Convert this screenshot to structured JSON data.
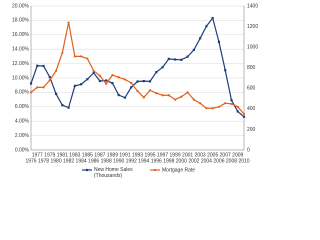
{
  "chart_data": {
    "type": "line",
    "categories": [
      "1976",
      "1977",
      "1978",
      "1979",
      "1980",
      "1981",
      "1982",
      "1983",
      "1984",
      "1985",
      "1986",
      "1987",
      "1988",
      "1989",
      "1990",
      "1991",
      "1992",
      "1993",
      "1994",
      "1995",
      "1996",
      "1997",
      "1998",
      "1999",
      "2000",
      "2001",
      "2002",
      "2003",
      "2004",
      "2005",
      "2006",
      "2007",
      "2008",
      "2009",
      "2010"
    ],
    "series": [
      {
        "name": "New Home Sales (Thousands)",
        "color": "#1f3f7a",
        "axis": "y2",
        "marker": "square",
        "values": [
          646,
          819,
          817,
          709,
          545,
          436,
          412,
          623,
          639,
          688,
          750,
          671,
          676,
          650,
          534,
          509,
          610,
          666,
          670,
          667,
          757,
          804,
          886,
          880,
          877,
          908,
          973,
          1086,
          1203,
          1283,
          1051,
          776,
          485,
          375,
          323
        ]
      },
      {
        "name": "Mortgage Rate",
        "color": "#e0601a",
        "marker": "circle",
        "values": [
          8.0,
          8.7,
          8.7,
          9.7,
          11.0,
          13.5,
          17.7,
          13.0,
          13.0,
          12.7,
          11.0,
          10.3,
          9.2,
          10.4,
          10.1,
          9.8,
          9.3,
          8.2,
          7.3,
          8.3,
          7.9,
          7.6,
          7.6,
          7.0,
          7.4,
          8.0,
          7.0,
          6.5,
          5.8,
          5.8,
          6.0,
          6.5,
          6.4,
          6.0,
          5.0
        ]
      }
    ],
    "ylim": [
      0,
      20
    ],
    "yticks": [
      {
        "value": 0,
        "label": "0.00%"
      },
      {
        "value": 2,
        "label": "2.00%"
      },
      {
        "value": 4,
        "label": "4.00%"
      },
      {
        "value": 6,
        "label": "6.00%"
      },
      {
        "value": 8,
        "label": "8.00%"
      },
      {
        "value": 10,
        "label": "10.00%"
      },
      {
        "value": 12,
        "label": "12.00%"
      },
      {
        "value": 14,
        "label": "14.00%"
      },
      {
        "value": 16,
        "label": "16.00%"
      },
      {
        "value": 18,
        "label": "18.00%"
      },
      {
        "value": 20,
        "label": "20.00%"
      }
    ],
    "y2lim": [
      0,
      1400
    ],
    "y2ticks": [
      0,
      200,
      400,
      600,
      800,
      1000,
      1200,
      1400
    ],
    "grid": true,
    "legend": "bottom"
  }
}
